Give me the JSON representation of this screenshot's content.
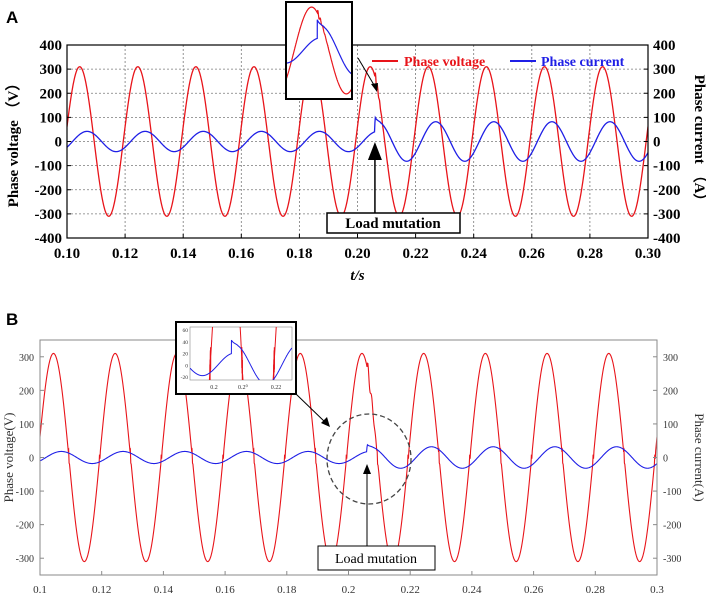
{
  "chart_data": [
    {
      "panel": "A",
      "type": "line",
      "xlabel": "t/s",
      "ylabel_left": "Phase voltage （V）",
      "ylabel_right": "Phase current （A）",
      "xlim": [
        0.1,
        0.3
      ],
      "ylim_left": [
        -400,
        400
      ],
      "ylim_right": [
        -400,
        400
      ],
      "xticks": [
        "0.10",
        "0.12",
        "0.14",
        "0.16",
        "0.18",
        "0.20",
        "0.22",
        "0.24",
        "0.26",
        "0.28",
        "0.30"
      ],
      "yticks_left": [
        "400",
        "300",
        "200",
        "100",
        "0",
        "-100",
        "-200",
        "-300",
        "-400"
      ],
      "yticks_right": [
        "400",
        "300",
        "200",
        "100",
        "0",
        "-100",
        "-200",
        "-300",
        "-400"
      ],
      "grid": true,
      "legend_position": "top-right",
      "series": [
        {
          "name": "Phase voltage",
          "color": "#e8141a",
          "axis": "left",
          "amplitude": 310,
          "frequency_hz": 50
        },
        {
          "name": "Phase current",
          "color": "#1f1fe6",
          "axis": "right",
          "amplitude_before": 42,
          "amplitude_after": 82,
          "frequency_hz": 50
        }
      ],
      "annotations": [
        {
          "text": "Load mutation",
          "x": 0.206
        }
      ],
      "inset": {
        "show": true
      }
    },
    {
      "panel": "B",
      "type": "line",
      "ylabel_left": "Phase voltage(V)",
      "ylabel_right": "Phase current(A)",
      "xlim": [
        0.1,
        0.3
      ],
      "ylim_left": [
        -350,
        350
      ],
      "ylim_right": [
        -350,
        350
      ],
      "xticks": [
        "0.1",
        "0.12",
        "0.14",
        "0.16",
        "0.18",
        "0.2",
        "0.22",
        "0.24",
        "0.26",
        "0.28",
        "0.3"
      ],
      "yticks_left": [
        "300",
        "200",
        "100",
        "0",
        "-100",
        "-200",
        "-300"
      ],
      "yticks_right": [
        "300",
        "200",
        "100",
        "0",
        "-100",
        "-200",
        "-300"
      ],
      "grid": false,
      "series": [
        {
          "name": "Phase voltage",
          "color": "#e8141a",
          "axis": "left",
          "amplitude": 310,
          "frequency_hz": 50
        },
        {
          "name": "Phase current",
          "color": "#1f1fe6",
          "axis": "right",
          "amplitude_before": 18,
          "amplitude_after": 32,
          "frequency_hz": 50
        }
      ],
      "annotations": [
        {
          "text": "Load mutation",
          "x": 0.206
        }
      ],
      "inset": {
        "xticks": [
          "0.2",
          "0.2⁰",
          "0.22"
        ],
        "yticks": [
          "60",
          "40",
          "20",
          "0",
          "-20"
        ]
      }
    }
  ],
  "labels": {
    "panel_a": "A",
    "panel_b": "B"
  }
}
